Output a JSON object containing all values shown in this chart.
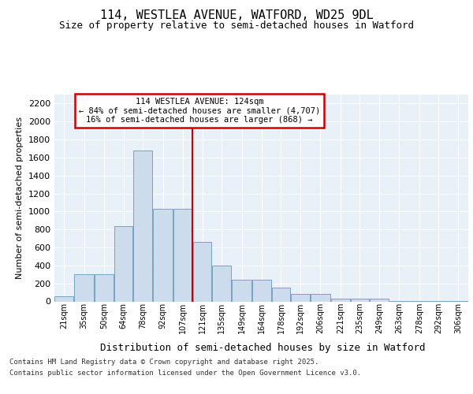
{
  "title": "114, WESTLEA AVENUE, WATFORD, WD25 9DL",
  "subtitle": "Size of property relative to semi-detached houses in Watford",
  "xlabel": "Distribution of semi-detached houses by size in Watford",
  "ylabel": "Number of semi-detached properties",
  "footer_line1": "Contains HM Land Registry data © Crown copyright and database right 2025.",
  "footer_line2": "Contains public sector information licensed under the Open Government Licence v3.0.",
  "bins_left": [
    21,
    35,
    50,
    64,
    78,
    92,
    107,
    121,
    135,
    149,
    164,
    178,
    192,
    206,
    221,
    235,
    249,
    263,
    278,
    292,
    306
  ],
  "counts": [
    60,
    300,
    300,
    840,
    1680,
    1030,
    1030,
    660,
    400,
    240,
    240,
    155,
    80,
    80,
    30,
    30,
    30,
    5,
    5,
    5,
    5
  ],
  "vline_x": 121,
  "bar_face_color": "#ccdcec",
  "bar_edge_color": "#6699bb",
  "vline_color": "#cc0000",
  "bg_color": "#e8f0f8",
  "fig_bg_color": "#ffffff",
  "grid_color": "#ffffff",
  "ann_title": "114 WESTLEA AVENUE: 124sqm",
  "ann_line2": "← 84% of semi-detached houses are smaller (4,707)",
  "ann_line3": "16% of semi-detached houses are larger (868) →",
  "ann_box_edgecolor": "#cc0000",
  "ylim": [
    0,
    2300
  ],
  "yticks": [
    0,
    200,
    400,
    600,
    800,
    1000,
    1200,
    1400,
    1600,
    1800,
    2000,
    2200
  ],
  "title_fontsize": 11,
  "subtitle_fontsize": 9,
  "ylabel_fontsize": 8,
  "xlabel_fontsize": 9,
  "ytick_fontsize": 8,
  "xtick_fontsize": 7,
  "footer_fontsize": 6.5,
  "ann_fontsize": 7.5
}
